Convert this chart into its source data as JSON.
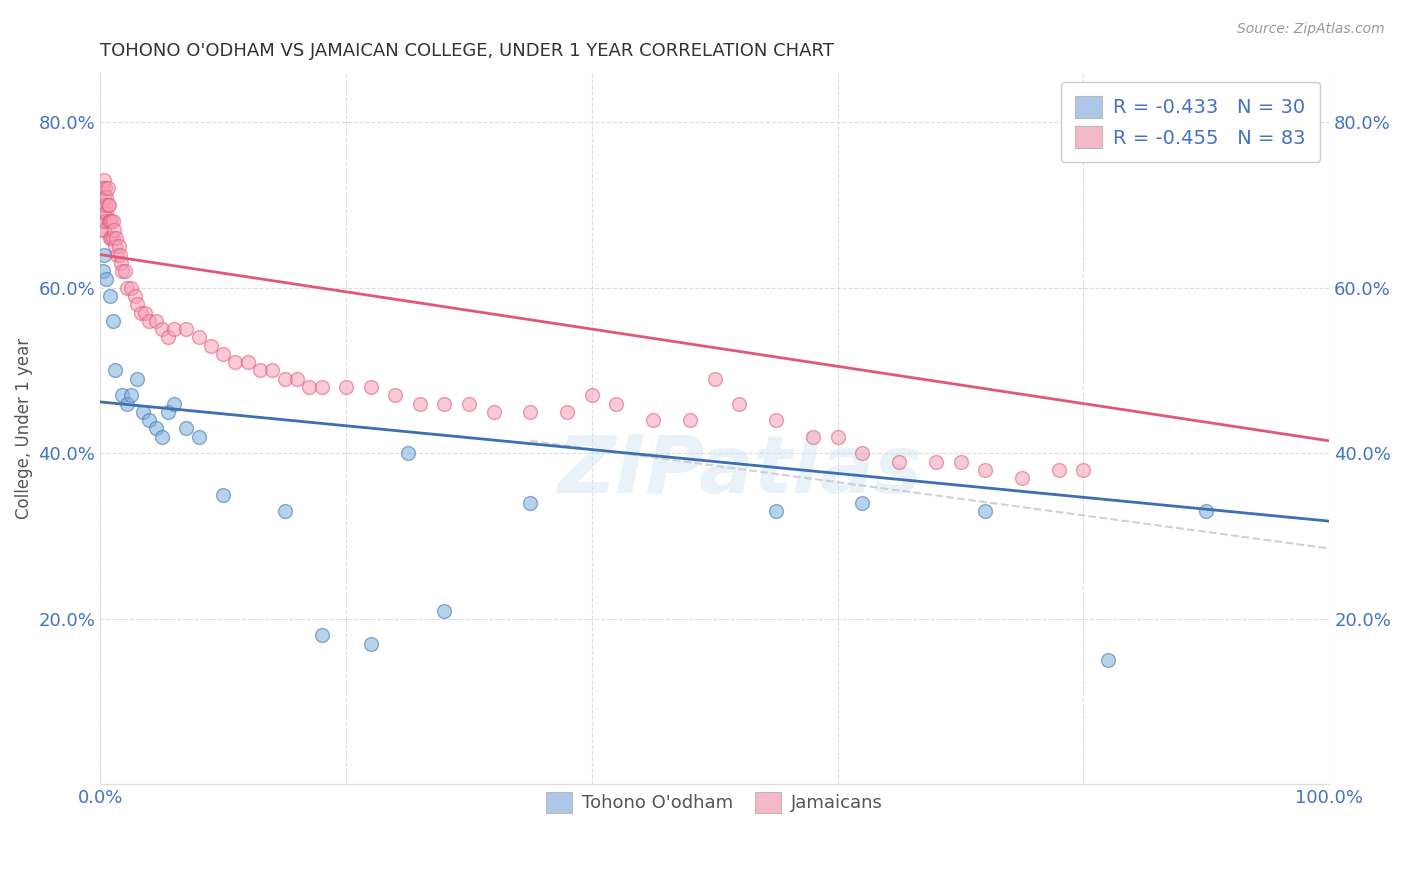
{
  "title": "TOHONO O'ODHAM VS JAMAICAN COLLEGE, UNDER 1 YEAR CORRELATION CHART",
  "source": "Source: ZipAtlas.com",
  "ylabel": "College, Under 1 year",
  "xlim": [
    0.0,
    1.0
  ],
  "ylim": [
    0.0,
    0.86
  ],
  "xtick_positions": [
    0.0,
    0.2,
    0.4,
    0.6,
    0.8,
    1.0
  ],
  "xticklabels": [
    "0.0%",
    "",
    "",
    "",
    "",
    "100.0%"
  ],
  "ytick_positions": [
    0.0,
    0.2,
    0.4,
    0.6,
    0.8
  ],
  "yticklabels": [
    "",
    "20.0%",
    "40.0%",
    "60.0%",
    "80.0%"
  ],
  "watermark": "ZIPatlas",
  "legend_blue_label": "R = -0.433   N = 30",
  "legend_pink_label": "R = -0.455   N = 83",
  "legend_blue_color": "#aec6e8",
  "legend_pink_color": "#f4b8c8",
  "dot_blue_color": "#7ab0d9",
  "dot_pink_color": "#f4a0b8",
  "line_blue_color": "#3d6fb5",
  "line_pink_color": "#e05878",
  "dashed_line_color": "#cccccc",
  "grid_color": "#dddddd",
  "background_color": "#ffffff",
  "axis_tick_color": "#4472c4",
  "ylabel_color": "#555555",
  "title_color": "#333333",
  "source_color": "#999999",
  "tohono_x": [
    0.002,
    0.003,
    0.005,
    0.008,
    0.01,
    0.012,
    0.018,
    0.022,
    0.025,
    0.03,
    0.035,
    0.04,
    0.045,
    0.05,
    0.055,
    0.06,
    0.07,
    0.08,
    0.1,
    0.15,
    0.18,
    0.22,
    0.28,
    0.35,
    0.55,
    0.62,
    0.72,
    0.82,
    0.9,
    0.25
  ],
  "tohono_y": [
    0.62,
    0.64,
    0.61,
    0.59,
    0.56,
    0.5,
    0.47,
    0.46,
    0.47,
    0.49,
    0.45,
    0.44,
    0.43,
    0.42,
    0.45,
    0.46,
    0.43,
    0.42,
    0.35,
    0.33,
    0.18,
    0.17,
    0.21,
    0.34,
    0.33,
    0.34,
    0.33,
    0.15,
    0.33,
    0.4
  ],
  "jamaican_x": [
    0.001,
    0.001,
    0.001,
    0.002,
    0.002,
    0.002,
    0.003,
    0.003,
    0.003,
    0.003,
    0.004,
    0.004,
    0.004,
    0.005,
    0.005,
    0.006,
    0.006,
    0.007,
    0.007,
    0.008,
    0.008,
    0.009,
    0.009,
    0.01,
    0.01,
    0.011,
    0.012,
    0.013,
    0.014,
    0.015,
    0.016,
    0.017,
    0.018,
    0.02,
    0.022,
    0.025,
    0.028,
    0.03,
    0.033,
    0.036,
    0.04,
    0.045,
    0.05,
    0.055,
    0.06,
    0.07,
    0.08,
    0.09,
    0.1,
    0.11,
    0.12,
    0.13,
    0.14,
    0.15,
    0.16,
    0.17,
    0.18,
    0.2,
    0.22,
    0.24,
    0.26,
    0.28,
    0.3,
    0.32,
    0.35,
    0.38,
    0.4,
    0.42,
    0.45,
    0.48,
    0.5,
    0.52,
    0.55,
    0.58,
    0.6,
    0.62,
    0.65,
    0.68,
    0.7,
    0.72,
    0.75,
    0.78,
    0.8
  ],
  "jamaican_y": [
    0.72,
    0.7,
    0.68,
    0.72,
    0.7,
    0.67,
    0.73,
    0.71,
    0.69,
    0.67,
    0.72,
    0.7,
    0.68,
    0.71,
    0.69,
    0.72,
    0.7,
    0.7,
    0.68,
    0.68,
    0.66,
    0.68,
    0.66,
    0.68,
    0.66,
    0.67,
    0.65,
    0.66,
    0.64,
    0.65,
    0.64,
    0.63,
    0.62,
    0.62,
    0.6,
    0.6,
    0.59,
    0.58,
    0.57,
    0.57,
    0.56,
    0.56,
    0.55,
    0.54,
    0.55,
    0.55,
    0.54,
    0.53,
    0.52,
    0.51,
    0.51,
    0.5,
    0.5,
    0.49,
    0.49,
    0.48,
    0.48,
    0.48,
    0.48,
    0.47,
    0.46,
    0.46,
    0.46,
    0.45,
    0.45,
    0.45,
    0.47,
    0.46,
    0.44,
    0.44,
    0.49,
    0.46,
    0.44,
    0.42,
    0.42,
    0.4,
    0.39,
    0.39,
    0.39,
    0.38,
    0.37,
    0.38,
    0.38
  ],
  "blue_line_x0": 0.0,
  "blue_line_y0": 0.462,
  "blue_line_x1": 1.0,
  "blue_line_y1": 0.318,
  "pink_line_x0": 0.0,
  "pink_line_y0": 0.64,
  "pink_line_x1": 1.0,
  "pink_line_y1": 0.415,
  "dashed_line_x0": 0.35,
  "dashed_line_y0": 0.415,
  "dashed_line_x1": 1.0,
  "dashed_line_y1": 0.285
}
